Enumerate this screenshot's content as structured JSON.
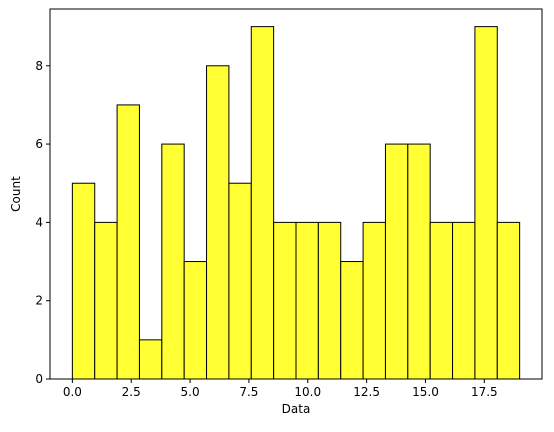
{
  "chart_data": {
    "type": "bar",
    "subtype": "histogram",
    "title": "",
    "xlabel": "Data",
    "ylabel": "Count",
    "bin_edges": [
      0,
      0.95,
      1.9,
      2.85,
      3.8,
      4.75,
      5.7,
      6.65,
      7.6,
      8.55,
      9.5,
      10.45,
      11.4,
      12.35,
      13.3,
      14.25,
      15.2,
      16.15,
      17.1,
      18.05,
      19.0
    ],
    "values": [
      5,
      4,
      7,
      1,
      6,
      3,
      8,
      5,
      9,
      4,
      4,
      4,
      3,
      4,
      6,
      6,
      4,
      4,
      9,
      4
    ],
    "xlim": [
      -0.95,
      19.95
    ],
    "ylim": [
      0,
      9.45
    ],
    "xticks": [
      0.0,
      2.5,
      5.0,
      7.5,
      10.0,
      12.5,
      15.0,
      17.5
    ],
    "xtick_labels": [
      "0.0",
      "2.5",
      "5.0",
      "7.5",
      "10.0",
      "12.5",
      "15.0",
      "17.5"
    ],
    "yticks": [
      0,
      2,
      4,
      6,
      8
    ],
    "ytick_labels": [
      "0",
      "2",
      "4",
      "6",
      "8"
    ],
    "bar_color": "#ffff33",
    "edge_color": "#000000",
    "grid": false,
    "legend": "none"
  }
}
